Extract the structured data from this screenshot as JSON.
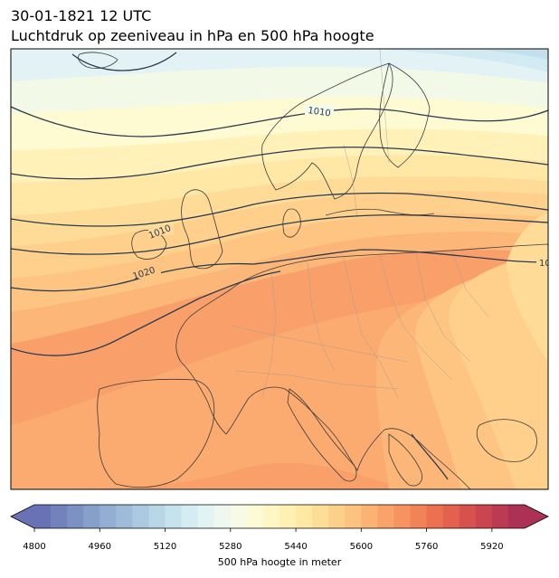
{
  "header": {
    "datetime": "30-01-1821 12 UTC",
    "subtitle": "Luchtdruk op zeeniveau in hPa en 500 hPa hoogte"
  },
  "isobars": [
    {
      "label": "1010"
    },
    {
      "label": "1010"
    },
    {
      "label": "1020"
    },
    {
      "label": "10"
    }
  ],
  "colorbar": {
    "title": "500 hPa hoogte in meter",
    "ticks": [
      "4800",
      "4960",
      "5120",
      "5280",
      "5440",
      "5600",
      "5760",
      "5920"
    ],
    "min": 4800,
    "max": 6000,
    "step": 40,
    "colors": [
      "#6a72b6",
      "#7381bd",
      "#7c90c4",
      "#879fcb",
      "#92aed2",
      "#9ebcd9",
      "#abc9e0",
      "#b8d6e6",
      "#c6e2ec",
      "#d4ecf2",
      "#e2f3f4",
      "#eef8f1",
      "#f7fbe6",
      "#fcfbd6",
      "#fff6c4",
      "#fff0b4",
      "#ffe7a4",
      "#fedd96",
      "#fdd08a",
      "#fcc27f",
      "#fbb374",
      "#f9a36a",
      "#f79360",
      "#f28258",
      "#ec7151",
      "#e4614d",
      "#d8524d",
      "#cb454f",
      "#bc3a52",
      "#ad3155"
    ]
  }
}
